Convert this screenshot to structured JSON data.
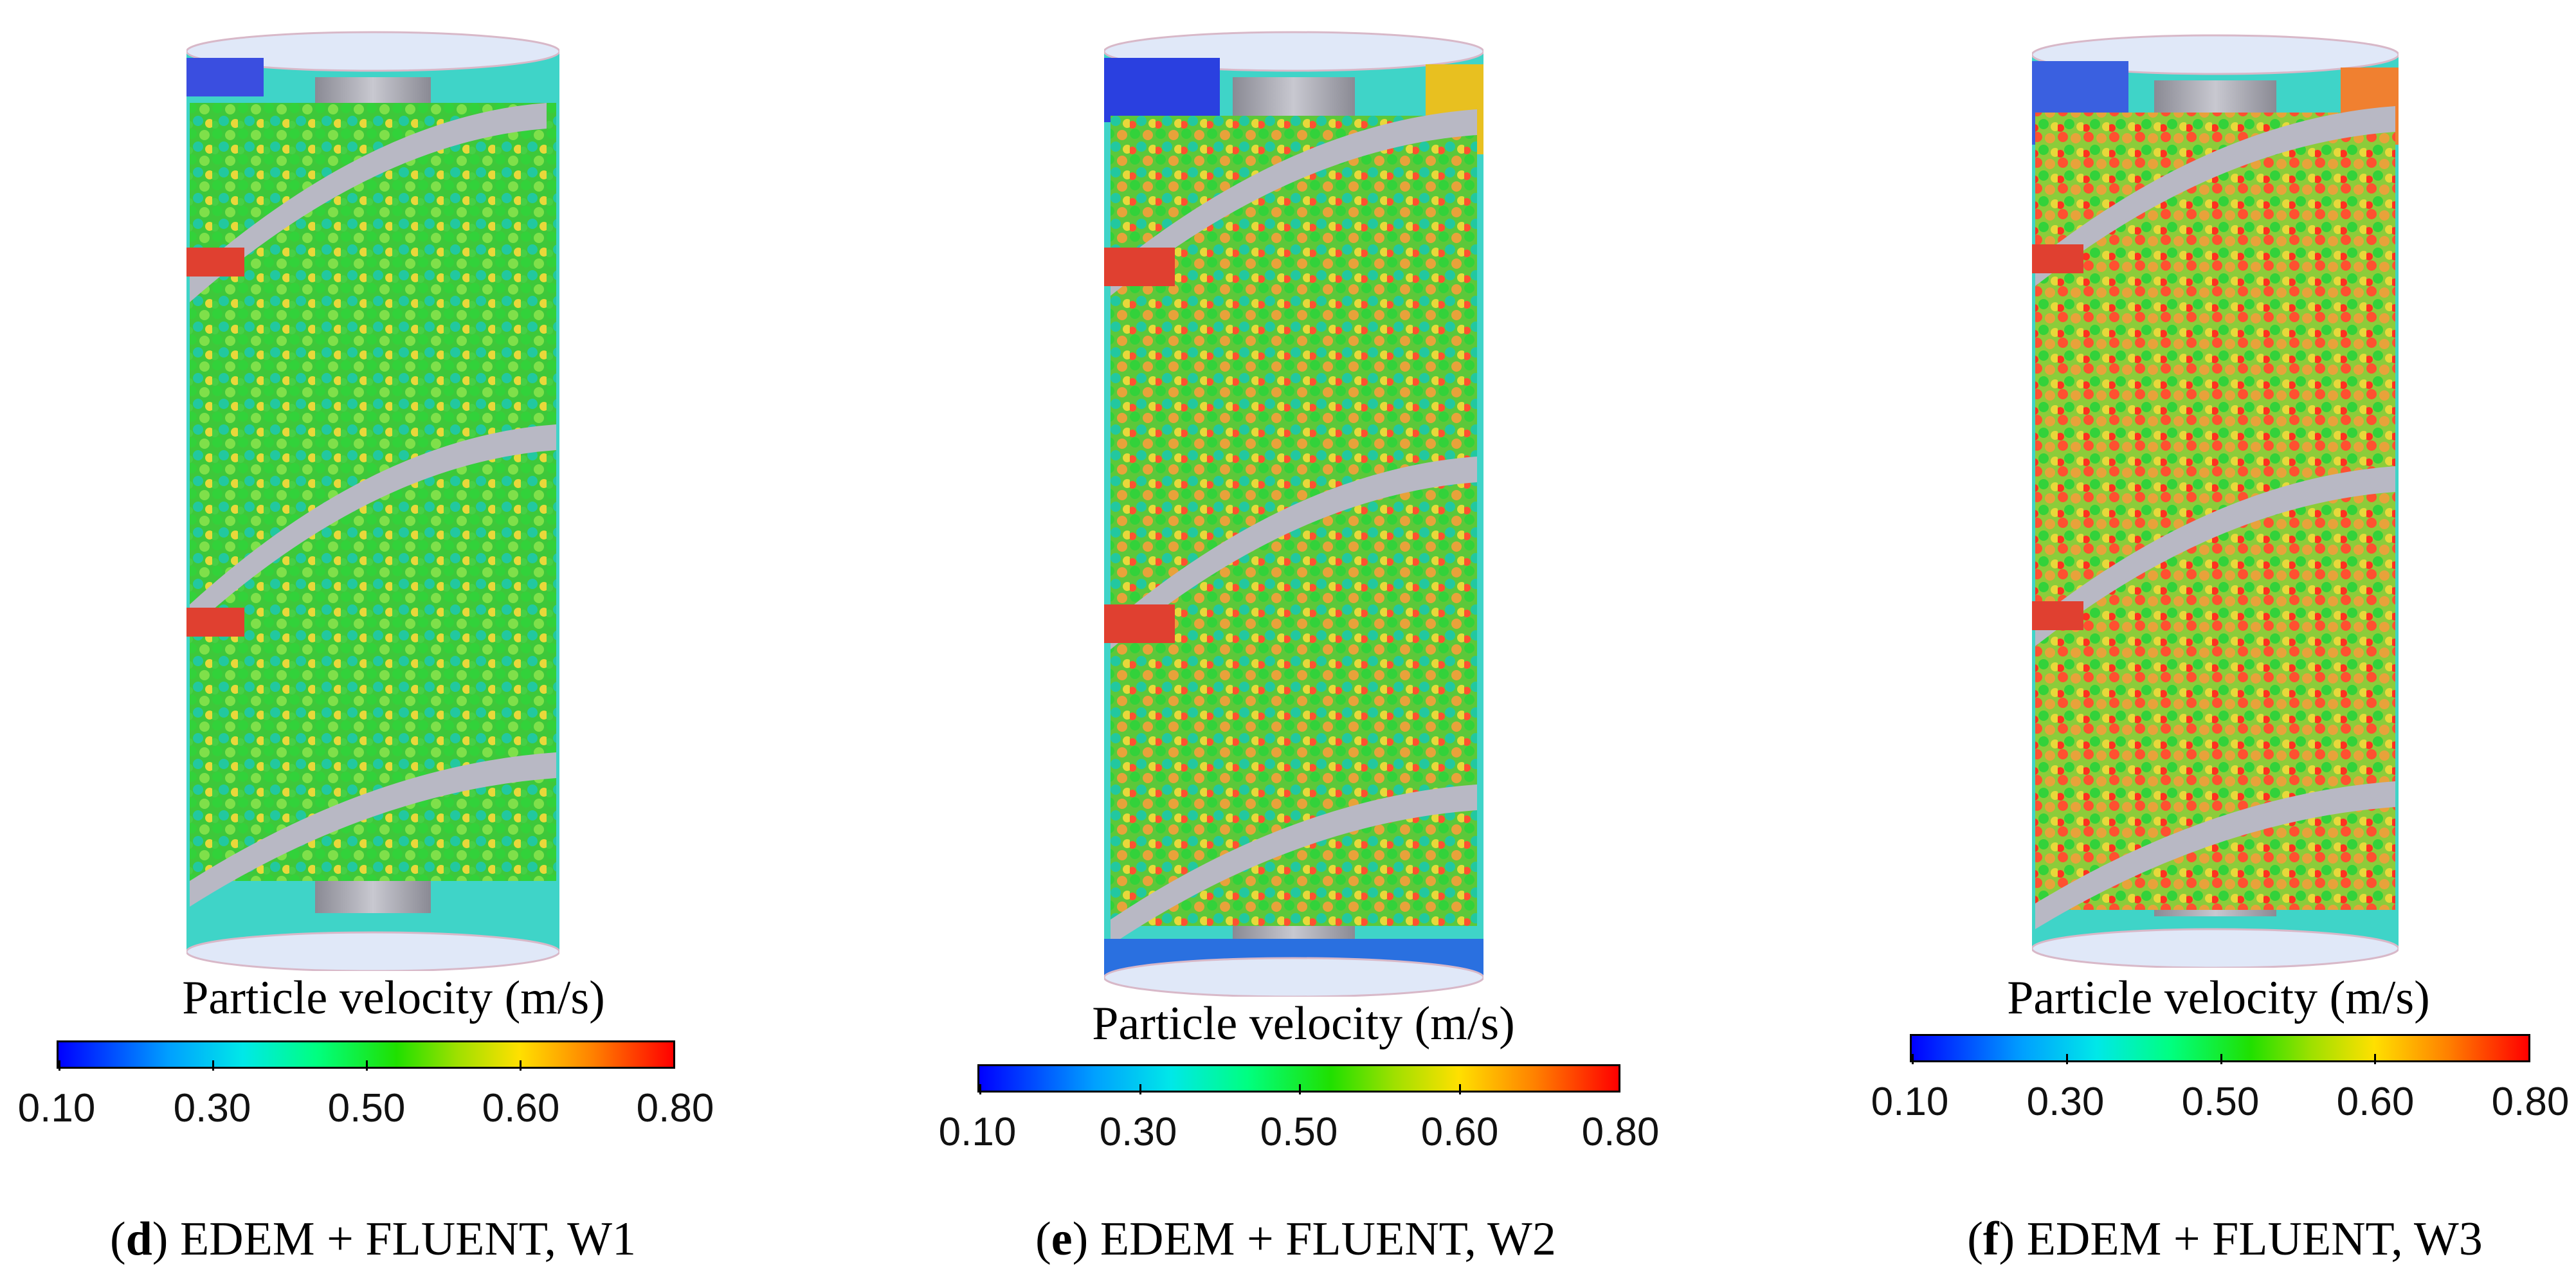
{
  "panels": [
    {
      "colorbar": {
        "title": "Particle velocity (m/s)",
        "ticks": [
          "0.10",
          "0.30",
          "0.50",
          "0.60",
          "0.80"
        ],
        "colors": [
          "#0000ff",
          "#00e8e8",
          "#20e000",
          "#ffe000",
          "#ff0000"
        ]
      },
      "caption": {
        "letter": "d",
        "text": " EDEM + FLUENT, W1"
      }
    },
    {
      "colorbar": {
        "title": "Particle velocity (m/s)",
        "ticks": [
          "0.10",
          "0.30",
          "0.50",
          "0.60",
          "0.80"
        ],
        "colors": [
          "#0000ff",
          "#00e8e8",
          "#20e000",
          "#ffe000",
          "#ff0000"
        ]
      },
      "caption": {
        "letter": "e",
        "text": " EDEM + FLUENT, W2"
      }
    },
    {
      "colorbar": {
        "title": "Particle velocity (m/s)",
        "ticks": [
          "0.10",
          "0.30",
          "0.50",
          "0.60",
          "0.80"
        ],
        "colors": [
          "#0000ff",
          "#00e8e8",
          "#20e000",
          "#ffe000",
          "#ff0000"
        ]
      },
      "caption": {
        "letter": "f",
        "text": " EDEM + FLUENT, W3"
      }
    }
  ]
}
